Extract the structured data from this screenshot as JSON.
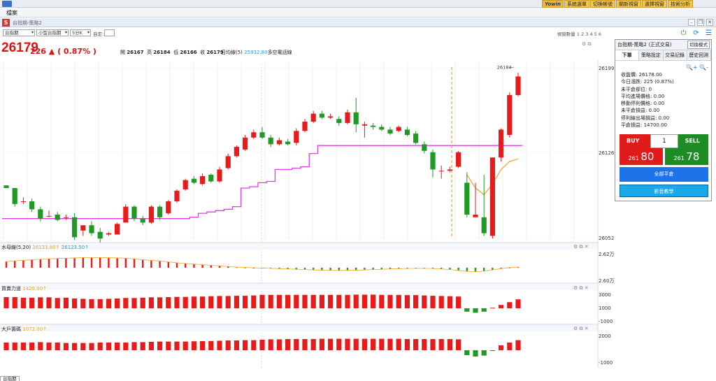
{
  "topbar": {
    "buttons": [
      "Yowin",
      "系統選單",
      "切換帳號",
      "關新視窗",
      "選擇視窗",
      "技術分析"
    ]
  },
  "menu": {
    "file": "檔案"
  },
  "window": {
    "title": "台指期-策略2"
  },
  "controls": {
    "symbol": "台指期",
    "product": "小型台指期",
    "interval": "5分K",
    "custom_label": "自定:",
    "count_label": "視窗數量 1 2 3 4 5 6"
  },
  "quote": {
    "price": "26179",
    "change": "226 ▲ ( 0.87% )",
    "open_label": "開",
    "open": "26167",
    "high_label": "高",
    "high": "26184",
    "low_label": "低",
    "low": "26166",
    "close_label": "收",
    "close": "26179",
    "avg_label": "日均線(5)",
    "avg_value": "25932.80",
    "avg_suffix": "多空電話線"
  },
  "panels": {
    "macd_label": "水母線(5,20)",
    "macd_v1": "26131.80↑",
    "macd_v2": "26123.50↑",
    "buy_power_label": "買賣力道",
    "buy_power_value": "1420.00↑",
    "big_player_label": "大戶籌碼",
    "big_player_value": "1072.00↑"
  },
  "axes": {
    "price_ticks": [
      "26199",
      "26126",
      "26052"
    ],
    "macd_ticks": [
      "2.62万",
      "2.60万"
    ],
    "bp_ticks": [
      "3000",
      "1000",
      "-1000"
    ],
    "big_ticks": [
      "2000",
      "-1000"
    ],
    "high_marker": "26184"
  },
  "colors": {
    "up": "#e81b1b",
    "down": "#1e9a25",
    "stop_line": "#e23be8",
    "ma_line": "#f0a322",
    "blue_value": "#1e9fd6",
    "orange_value": "#f0a322"
  },
  "right_panel": {
    "title": "台指期-策略2 (正式交易)",
    "switch_mode": "切換模式",
    "tabs": [
      "下單",
      "策略設定",
      "交易記錄",
      "歷史回測"
    ],
    "info": [
      "收盤價: 26178.00",
      "今日漲跌: 225 (0.87%)",
      "未平倉部位: 0",
      "平均進場價格: 0.00",
      "移動停利價格: 0.00",
      "未平倉損益: 0.00",
      "停利線出場損益: 0.00",
      "平倉損益: 14700.00"
    ],
    "buy_label": "BUY",
    "sell_label": "SELL",
    "qty": "1",
    "buy_price_small": "261",
    "buy_price_big": "80",
    "sell_price_small": "261",
    "sell_price_big": "78",
    "flat_all": "全部平倉",
    "video": "影音教學"
  },
  "bottom_tab": "台指期",
  "chart_data": {
    "type": "candlestick",
    "candles_rel": [
      [
        0.32,
        0.3,
        0.28,
        0.28
      ],
      [
        0.3,
        0.18,
        0.3,
        0.16
      ],
      [
        0.2,
        0.2,
        0.23,
        0.18
      ],
      [
        0.2,
        0.14,
        0.22,
        0.12
      ],
      [
        0.14,
        0.07,
        0.16,
        0.05
      ],
      [
        0.09,
        0.09,
        0.13,
        0.08
      ],
      [
        0.1,
        0.06,
        0.12,
        0.05
      ],
      [
        0.08,
        0.08,
        0.1,
        0.06
      ],
      [
        0.08,
        -0.07,
        0.11,
        -0.09
      ],
      [
        -0.02,
        0.02,
        0.02,
        -0.06
      ],
      [
        0.02,
        -0.04,
        0.05,
        -0.06
      ],
      [
        -0.03,
        -0.08,
        0.0,
        -0.11
      ],
      [
        -0.05,
        -0.04,
        -0.03,
        -0.06
      ],
      [
        -0.05,
        0.03,
        0.04,
        -0.05
      ],
      [
        0.04,
        0.16,
        0.18,
        0.04
      ],
      [
        0.16,
        0.07,
        0.17,
        0.05
      ],
      [
        0.07,
        0.04,
        0.09,
        0.02
      ],
      [
        0.04,
        0.16,
        0.17,
        0.03
      ],
      [
        0.16,
        0.08,
        0.17,
        0.06
      ],
      [
        0.11,
        0.2,
        0.21,
        0.1
      ],
      [
        0.2,
        0.28,
        0.29,
        0.19
      ],
      [
        0.29,
        0.36,
        0.37,
        0.28
      ],
      [
        0.37,
        0.34,
        0.39,
        0.33
      ],
      [
        0.33,
        0.39,
        0.41,
        0.32
      ],
      [
        0.4,
        0.35,
        0.41,
        0.34
      ],
      [
        0.35,
        0.44,
        0.46,
        0.34
      ],
      [
        0.45,
        0.54,
        0.56,
        0.44
      ],
      [
        0.54,
        0.61,
        0.62,
        0.53
      ],
      [
        0.59,
        0.68,
        0.7,
        0.58
      ],
      [
        0.68,
        0.72,
        0.74,
        0.67
      ],
      [
        0.72,
        0.68,
        0.76,
        0.67
      ],
      [
        0.68,
        0.63,
        0.7,
        0.61
      ],
      [
        0.63,
        0.66,
        0.68,
        0.62
      ],
      [
        0.65,
        0.63,
        0.67,
        0.62
      ],
      [
        0.64,
        0.73,
        0.75,
        0.62
      ],
      [
        0.73,
        0.8,
        0.82,
        0.72
      ],
      [
        0.8,
        0.86,
        0.88,
        0.79
      ],
      [
        0.86,
        0.83,
        0.88,
        0.82
      ],
      [
        0.83,
        0.84,
        0.86,
        0.82
      ],
      [
        0.82,
        0.79,
        0.84,
        0.77
      ],
      [
        0.79,
        0.87,
        0.89,
        0.78
      ],
      [
        0.87,
        0.78,
        0.98,
        0.72
      ],
      [
        0.77,
        0.78,
        0.8,
        0.68
      ],
      [
        0.77,
        0.76,
        0.79,
        0.74
      ],
      [
        0.76,
        0.74,
        0.78,
        0.73
      ],
      [
        0.74,
        0.71,
        0.76,
        0.7
      ],
      [
        0.73,
        0.76,
        0.77,
        0.72
      ],
      [
        0.74,
        0.7,
        0.76,
        0.69
      ],
      [
        0.71,
        0.64,
        0.73,
        0.63
      ],
      [
        0.63,
        0.58,
        0.65,
        0.56
      ],
      [
        0.57,
        0.44,
        0.59,
        0.38
      ],
      [
        0.43,
        0.43,
        0.47,
        0.37
      ],
      [
        0.43,
        0.44,
        0.46,
        0.42
      ],
      [
        0.46,
        0.57,
        0.58,
        0.45
      ],
      [
        0.34,
        0.1,
        0.42,
        0.08
      ],
      [
        0.08,
        0.1,
        0.34,
        0.09
      ],
      [
        0.08,
        -0.04,
        0.4,
        -0.06
      ],
      [
        -0.06,
        0.53,
        0.52,
        -0.08
      ],
      [
        0.53,
        0.74,
        0.75,
        0.5
      ],
      [
        0.7,
        1.0,
        1.02,
        0.68
      ],
      [
        1.0,
        1.14,
        1.17,
        0.99
      ]
    ],
    "stop_rel": [
      0.07,
      0.07,
      0.07,
      0.07,
      0.07,
      0.07,
      0.07,
      0.07,
      0.07,
      0.07,
      0.07,
      0.07,
      0.07,
      0.07,
      0.07,
      0.07,
      0.07,
      0.07,
      0.07,
      0.07,
      0.07,
      0.07,
      0.08,
      0.11,
      0.12,
      0.13,
      0.14,
      0.16,
      0.3,
      0.31,
      0.34,
      0.35,
      0.44,
      0.44,
      0.45,
      0.46,
      0.56,
      0.62,
      0.62,
      0.62,
      0.62,
      0.62,
      0.62,
      0.62,
      0.62,
      0.62,
      0.62,
      0.62,
      0.62,
      0.62,
      0.62,
      0.62,
      0.62,
      0.62,
      0.62,
      0.62,
      0.62,
      0.62,
      0.62,
      0.62,
      0.62
    ],
    "macd_rel": [
      0.4,
      0.45,
      0.48,
      0.52,
      0.55,
      0.58,
      0.6,
      0.62,
      0.64,
      0.66,
      0.66,
      0.66,
      0.65,
      0.64,
      0.62,
      0.58,
      0.52,
      0.48,
      0.44,
      0.38,
      0.32,
      0.28,
      0.24,
      0.2,
      0.16,
      0.12,
      0.08,
      0.04,
      0.02,
      0.0,
      -0.02,
      -0.04,
      -0.06,
      -0.08,
      -0.1,
      -0.12,
      -0.14,
      -0.16,
      -0.17,
      -0.18,
      -0.17,
      -0.16,
      -0.14,
      -0.12,
      -0.1,
      -0.08,
      -0.06,
      -0.05,
      -0.04,
      -0.04,
      -0.05,
      -0.08,
      -0.12,
      -0.18,
      -0.24,
      -0.26,
      -0.22,
      -0.14,
      -0.06,
      0.02,
      0.04
    ],
    "buy_power_rel": [
      1.0,
      1.0,
      0.95,
      0.95,
      0.98,
      0.98,
      0.92,
      0.95,
      0.88,
      0.85,
      0.82,
      0.82,
      0.85,
      0.88,
      0.92,
      0.92,
      0.95,
      0.98,
      0.98,
      1.0,
      1.02,
      1.02,
      1.05,
      1.05,
      1.08,
      1.1,
      1.1,
      1.12,
      1.12,
      1.15,
      1.2,
      1.2,
      1.2,
      1.2,
      1.2,
      1.2,
      1.2,
      1.2,
      1.2,
      1.2,
      1.2,
      1.22,
      1.22,
      1.22,
      1.2,
      1.2,
      1.2,
      1.18,
      1.18,
      1.15,
      1.12,
      1.1,
      1.08,
      1.05,
      -0.3,
      -0.4,
      -0.3,
      0.05,
      0.3,
      0.55,
      0.8
    ],
    "big_player_rel": [
      0.55,
      0.55,
      0.55,
      0.55,
      0.58,
      0.55,
      0.55,
      0.52,
      0.52,
      0.52,
      0.52,
      0.55,
      0.55,
      0.55,
      0.55,
      0.58,
      0.58,
      0.6,
      0.62,
      0.62,
      0.62,
      0.62,
      0.64,
      0.65,
      0.66,
      0.68,
      0.7,
      0.7,
      0.72,
      0.72,
      0.75,
      0.78,
      0.78,
      0.8,
      0.8,
      0.8,
      0.8,
      0.82,
      0.82,
      0.82,
      0.82,
      0.82,
      0.82,
      0.82,
      0.82,
      0.82,
      0.82,
      0.8,
      0.8,
      0.8,
      0.8,
      0.8,
      0.8,
      0.78,
      -0.35,
      -0.45,
      -0.38,
      -0.05,
      0.35,
      0.55,
      0.72
    ]
  }
}
